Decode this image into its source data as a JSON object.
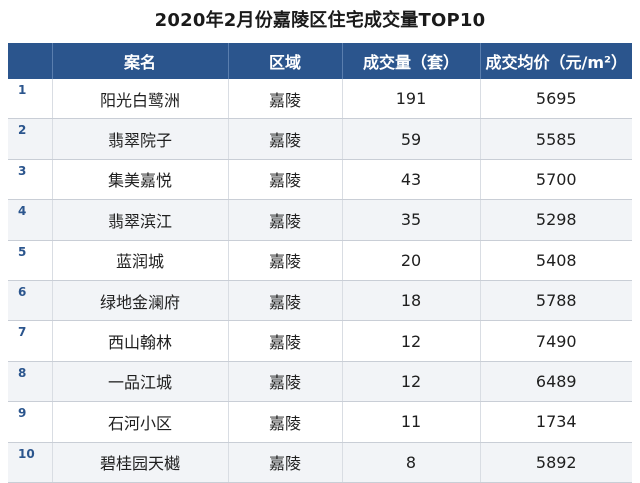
{
  "title": "2020年2月份嘉陵区住宅成交量TOP10",
  "table": {
    "headers": [
      "",
      "案名",
      "区域",
      "成交量（套）",
      "成交均价（元/m²）"
    ],
    "rows": [
      {
        "rank": "1",
        "name": "阳光白鹭洲",
        "area": "嘉陵",
        "volume": "191",
        "price": "5695"
      },
      {
        "rank": "2",
        "name": "翡翠院子",
        "area": "嘉陵",
        "volume": "59",
        "price": "5585"
      },
      {
        "rank": "3",
        "name": "集美嘉悦",
        "area": "嘉陵",
        "volume": "43",
        "price": "5700"
      },
      {
        "rank": "4",
        "name": "翡翠滨江",
        "area": "嘉陵",
        "volume": "35",
        "price": "5298"
      },
      {
        "rank": "5",
        "name": "蓝润城",
        "area": "嘉陵",
        "volume": "20",
        "price": "5408"
      },
      {
        "rank": "6",
        "name": "绿地金澜府",
        "area": "嘉陵",
        "volume": "18",
        "price": "5788"
      },
      {
        "rank": "7",
        "name": "西山翰林",
        "area": "嘉陵",
        "volume": "12",
        "price": "7490"
      },
      {
        "rank": "8",
        "name": "一品江城",
        "area": "嘉陵",
        "volume": "12",
        "price": "6489"
      },
      {
        "rank": "9",
        "name": "石河小区",
        "area": "嘉陵",
        "volume": "11",
        "price": "1734"
      },
      {
        "rank": "10",
        "name": "碧桂园天樾",
        "area": "嘉陵",
        "volume": "8",
        "price": "5892"
      }
    ]
  },
  "colors": {
    "header_bg": "#2b558d",
    "header_text": "#ffffff",
    "rank_text": "#2b558d"
  }
}
